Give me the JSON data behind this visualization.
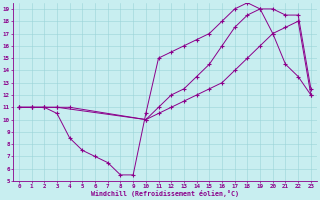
{
  "xlabel": "Windchill (Refroidissement éolien,°C)",
  "bg_color": "#c8eef0",
  "line_color": "#8b008b",
  "xlim": [
    -0.5,
    23.5
  ],
  "ylim": [
    5,
    19.5
  ],
  "xticks": [
    0,
    1,
    2,
    3,
    4,
    5,
    6,
    7,
    8,
    9,
    10,
    11,
    12,
    13,
    14,
    15,
    16,
    17,
    18,
    19,
    20,
    21,
    22,
    23
  ],
  "yticks": [
    5,
    6,
    7,
    8,
    9,
    10,
    11,
    12,
    13,
    14,
    15,
    16,
    17,
    18,
    19
  ],
  "line1_x": [
    0,
    1,
    2,
    3,
    4,
    5,
    6,
    7,
    8,
    9,
    10,
    11,
    12,
    13,
    14,
    15,
    16,
    17,
    18,
    19,
    20,
    21,
    22,
    23
  ],
  "line1_y": [
    11,
    11,
    11,
    10.5,
    8.5,
    7.5,
    7.0,
    6.5,
    5.5,
    5.5,
    10.5,
    15.0,
    15.5,
    16.0,
    16.5,
    17.0,
    18.0,
    19.0,
    19.5,
    19.0,
    17.0,
    14.5,
    13.5,
    12.0
  ],
  "line2_x": [
    0,
    1,
    2,
    3,
    4,
    10,
    11,
    12,
    13,
    14,
    15,
    16,
    17,
    18,
    19,
    20,
    21,
    22,
    23
  ],
  "line2_y": [
    11,
    11,
    11,
    11,
    11,
    10,
    11,
    12,
    12.5,
    13.5,
    14.5,
    16,
    17.5,
    18.5,
    19,
    19,
    18.5,
    18.5,
    12.5
  ],
  "line3_x": [
    0,
    1,
    2,
    3,
    10,
    11,
    12,
    13,
    14,
    15,
    16,
    17,
    18,
    19,
    20,
    21,
    22,
    23
  ],
  "line3_y": [
    11,
    11,
    11,
    11,
    10,
    10.5,
    11,
    11.5,
    12,
    12.5,
    13,
    14,
    15,
    16,
    17,
    17.5,
    18,
    12
  ]
}
